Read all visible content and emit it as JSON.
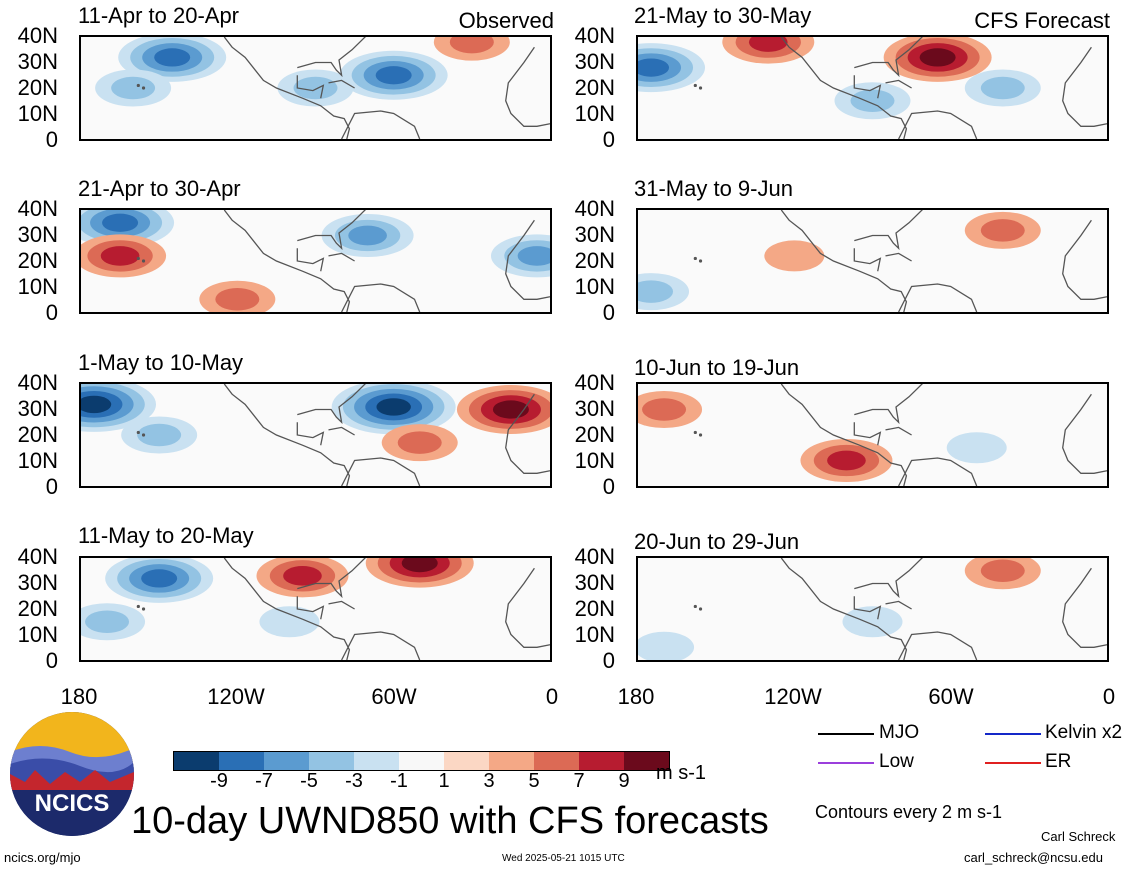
{
  "colorbar": {
    "colors": [
      "#0b3c6e",
      "#2a6fb5",
      "#5b9bd0",
      "#93c3e3",
      "#c9e1f1",
      "#f8f8f8",
      "#fbd7c4",
      "#f4a886",
      "#dc6a55",
      "#b71c30",
      "#6b0a1c"
    ],
    "ticks": [
      "-9",
      "-7",
      "-5",
      "-3",
      "-1",
      "1",
      "3",
      "5",
      "7",
      "9"
    ],
    "units": "m s-1"
  },
  "headers": {
    "observed": "Observed",
    "forecast": "CFS Forecast"
  },
  "y_ticks": [
    "40N",
    "30N",
    "20N",
    "10N",
    "0"
  ],
  "x_ticks": [
    "180",
    "120W",
    "60W",
    "0"
  ],
  "title": "10-day UWND850 with CFS forecasts",
  "legend": {
    "mjo": "MJO",
    "kelvin": "Kelvin x2",
    "low": "Low",
    "er": "ER",
    "mjo_color": "#000000",
    "kelvin_color": "#1428c8",
    "low_color": "#9b3fdc",
    "er_color": "#e02020"
  },
  "contour_note": "Contours every 2 m s-1",
  "footer": {
    "site": "ncics.org/mjo",
    "timestamp": "Wed 2025-05-21 1015 UTC",
    "author": "Carl Schreck",
    "email": "carl_schreck@ncsu.edu"
  },
  "logo_text": "NCICS",
  "chart_data": [
    {
      "type": "heatmap",
      "title": "11-Apr to 20-Apr",
      "group": "Observed",
      "ylim": [
        "0",
        "40N"
      ],
      "xlim": [
        "180",
        "0"
      ],
      "features": [
        {
          "lon": -145,
          "lat": 32,
          "value": -7
        },
        {
          "lon": -60,
          "lat": 25,
          "value": -7
        },
        {
          "lon": -160,
          "lat": 20,
          "value": -3
        },
        {
          "lon": -90,
          "lat": 20,
          "value": -3
        },
        {
          "lon": -30,
          "lat": 38,
          "value": 3
        }
      ]
    },
    {
      "type": "heatmap",
      "title": "21-Apr to 30-Apr",
      "group": "Observed",
      "ylim": [
        "0",
        "40N"
      ],
      "xlim": [
        "180",
        "0"
      ],
      "features": [
        {
          "lon": -165,
          "lat": 35,
          "value": -7
        },
        {
          "lon": -165,
          "lat": 22,
          "value": 5
        },
        {
          "lon": -70,
          "lat": 30,
          "value": -5
        },
        {
          "lon": -5,
          "lat": 22,
          "value": -5
        },
        {
          "lon": -120,
          "lat": 5,
          "value": 3
        }
      ]
    },
    {
      "type": "heatmap",
      "title": "1-May to 10-May",
      "group": "Observed",
      "ylim": [
        "0",
        "40N"
      ],
      "xlim": [
        "180",
        "0"
      ],
      "features": [
        {
          "lon": -175,
          "lat": 32,
          "value": -9
        },
        {
          "lon": -60,
          "lat": 31,
          "value": -9
        },
        {
          "lon": -15,
          "lat": 30,
          "value": 7
        },
        {
          "lon": -150,
          "lat": 20,
          "value": -3
        },
        {
          "lon": -50,
          "lat": 17,
          "value": 3
        }
      ]
    },
    {
      "type": "heatmap",
      "title": "11-May to 20-May",
      "group": "Observed",
      "ylim": [
        "0",
        "40N"
      ],
      "xlim": [
        "180",
        "0"
      ],
      "features": [
        {
          "lon": -150,
          "lat": 32,
          "value": -7
        },
        {
          "lon": -50,
          "lat": 38,
          "value": 7
        },
        {
          "lon": -95,
          "lat": 33,
          "value": 5
        },
        {
          "lon": -170,
          "lat": 15,
          "value": -3
        },
        {
          "lon": -100,
          "lat": 15,
          "value": -1
        }
      ]
    },
    {
      "type": "heatmap",
      "title": "21-May to 30-May",
      "group": "CFS Forecast",
      "ylim": [
        "0",
        "40N"
      ],
      "xlim": [
        "180",
        "0"
      ],
      "features": [
        {
          "lon": -65,
          "lat": 32,
          "value": 7
        },
        {
          "lon": -175,
          "lat": 28,
          "value": -7
        },
        {
          "lon": -130,
          "lat": 38,
          "value": 5
        },
        {
          "lon": -90,
          "lat": 15,
          "value": -3
        },
        {
          "lon": -40,
          "lat": 20,
          "value": -3
        }
      ]
    },
    {
      "type": "heatmap",
      "title": "31-May to 9-Jun",
      "group": "CFS Forecast",
      "ylim": [
        "0",
        "40N"
      ],
      "xlim": [
        "180",
        "0"
      ],
      "features": [
        {
          "lon": -40,
          "lat": 32,
          "value": 3
        },
        {
          "lon": -175,
          "lat": 8,
          "value": -3
        },
        {
          "lon": -120,
          "lat": 22,
          "value": 1
        }
      ]
    },
    {
      "type": "heatmap",
      "title": "10-Jun to 19-Jun",
      "group": "CFS Forecast",
      "ylim": [
        "0",
        "40N"
      ],
      "xlim": [
        "180",
        "0"
      ],
      "features": [
        {
          "lon": -100,
          "lat": 10,
          "value": 5
        },
        {
          "lon": -170,
          "lat": 30,
          "value": 3
        },
        {
          "lon": -50,
          "lat": 15,
          "value": -1
        }
      ]
    },
    {
      "type": "heatmap",
      "title": "20-Jun to 29-Jun",
      "group": "CFS Forecast",
      "ylim": [
        "0",
        "40N"
      ],
      "xlim": [
        "180",
        "0"
      ],
      "features": [
        {
          "lon": -40,
          "lat": 35,
          "value": 3
        },
        {
          "lon": -170,
          "lat": 5,
          "value": -1
        },
        {
          "lon": -90,
          "lat": 15,
          "value": -1
        }
      ]
    }
  ]
}
